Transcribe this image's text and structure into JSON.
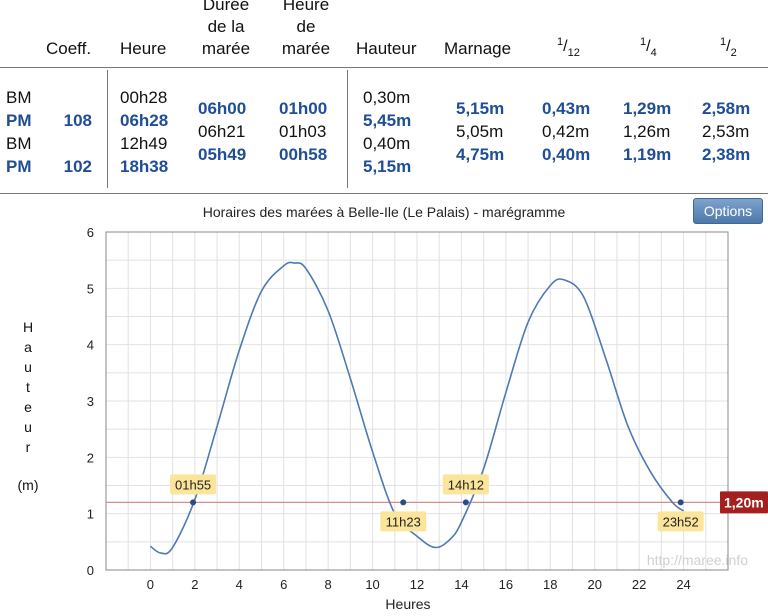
{
  "table": {
    "headers": {
      "coeff": "Coeff.",
      "heure": "Heure",
      "duree_l1": "Durée",
      "duree_l2": "de la",
      "duree_l3": "marée",
      "heure_maree_l1": "Heure",
      "heure_maree_l2": "de",
      "heure_maree_l3": "marée",
      "hauteur": "Hauteur",
      "marnage": "Marnage",
      "twelfth_num": "1",
      "twelfth_den": "12",
      "quarter_num": "1",
      "quarter_den": "4",
      "half_num": "1",
      "half_den": "2"
    },
    "rows": [
      {
        "type": "BM",
        "coeff": "",
        "heure": "00h28",
        "hauteur": "0,30m"
      },
      {
        "type": "PM",
        "coeff": "108",
        "heure": "06h28",
        "hauteur": "5,45m"
      },
      {
        "type": "BM",
        "coeff": "",
        "heure": "12h49",
        "hauteur": "0,40m"
      },
      {
        "type": "PM",
        "coeff": "102",
        "heure": "18h38",
        "hauteur": "5,15m"
      }
    ],
    "intervals": [
      {
        "duree": "06h00",
        "heure_maree": "01h00",
        "marnage": "5,15m",
        "twelfth": "0,43m",
        "quarter": "1,29m",
        "half": "2,58m"
      },
      {
        "duree": "06h21",
        "heure_maree": "01h03",
        "marnage": "5,05m",
        "twelfth": "0,42m",
        "quarter": "1,26m",
        "half": "2,53m"
      },
      {
        "duree": "05h49",
        "heure_maree": "00h58",
        "marnage": "4,75m",
        "twelfth": "0,40m",
        "quarter": "1,19m",
        "half": "2,38m"
      }
    ]
  },
  "chart": {
    "options_label": "Options",
    "watermark": "http://maree.info"
  },
  "chart_data": {
    "type": "line",
    "title": "Horaires des marées à Belle-Ile (Le Palais) - marégramme",
    "xlabel": "Heures",
    "ylabel_letters": [
      "H",
      "a",
      "u",
      "t",
      "e",
      "u",
      "r"
    ],
    "ylabel_unit": "(m)",
    "xlim": [
      -2,
      26
    ],
    "ylim": [
      0,
      6
    ],
    "xticks": [
      0,
      2,
      4,
      6,
      8,
      10,
      12,
      14,
      16,
      18,
      20,
      22,
      24
    ],
    "yticks": [
      0,
      1,
      2,
      3,
      4,
      5,
      6
    ],
    "grid": true,
    "series": [
      {
        "x": [
          0,
          0.47,
          1,
          2,
          3,
          4,
          5,
          6,
          6.47,
          7,
          8,
          9,
          10,
          11,
          12,
          12.82,
          13.5,
          14,
          15,
          16,
          17,
          18,
          18.63,
          19.5,
          20.5,
          21.5,
          22.5,
          23.5,
          24
        ],
        "y": [
          0.42,
          0.3,
          0.4,
          1.25,
          2.55,
          3.9,
          4.95,
          5.4,
          5.45,
          5.35,
          4.6,
          3.4,
          2.1,
          1.0,
          0.6,
          0.4,
          0.55,
          0.85,
          1.8,
          3.15,
          4.4,
          5.05,
          5.15,
          4.85,
          3.75,
          2.55,
          1.75,
          1.2,
          1.05
        ]
      }
    ],
    "threshold": {
      "value": 1.2,
      "label": "1,20m"
    },
    "crossings": [
      {
        "x": 1.92,
        "label": "01h55",
        "position": "above"
      },
      {
        "x": 11.38,
        "label": "11h23",
        "position": "below"
      },
      {
        "x": 14.2,
        "label": "14h12",
        "position": "above"
      },
      {
        "x": 23.87,
        "label": "23h52",
        "position": "below"
      }
    ]
  }
}
